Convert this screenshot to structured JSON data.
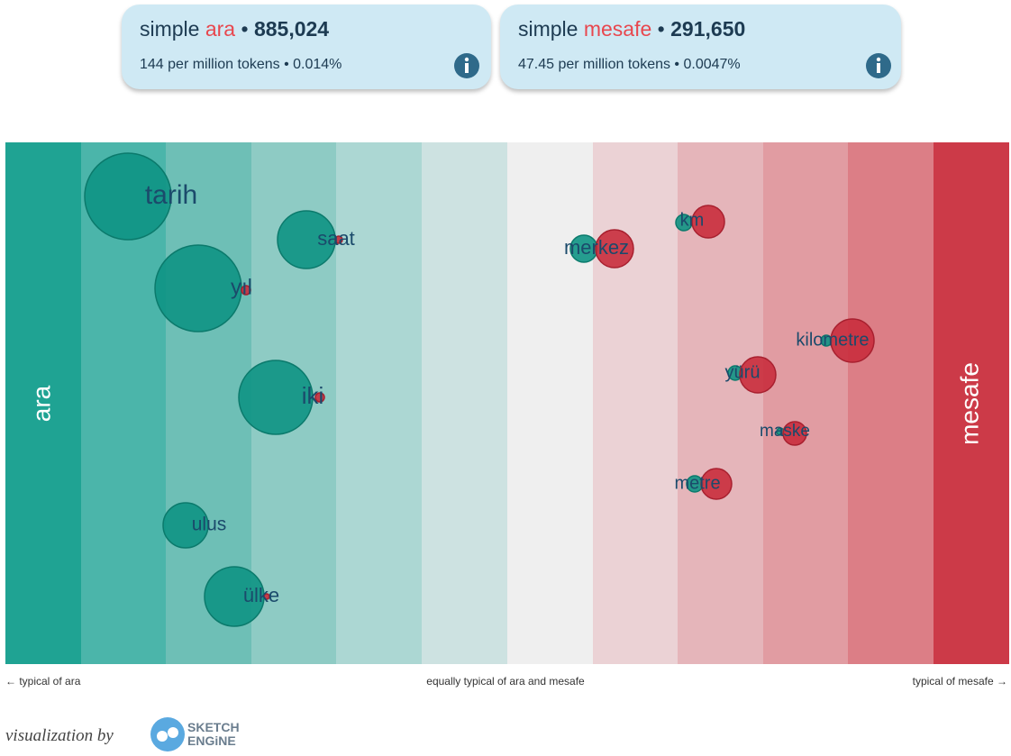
{
  "cards": [
    {
      "prefix": "simple",
      "lemma": "ara",
      "count": "885,024",
      "per_million": "144 per million tokens",
      "percent": "0.014%"
    },
    {
      "prefix": "simple",
      "lemma": "mesafe",
      "count": "291,650",
      "per_million": "47.45 per million tokens",
      "percent": "0.0047%"
    }
  ],
  "sides": {
    "left": "ara",
    "right": "mesafe"
  },
  "words": [
    "tarih",
    "saat",
    "yıl",
    "iki",
    "ulus",
    "ülke",
    "merkez",
    "km",
    "kilometre",
    "yürü",
    "maske",
    "metre"
  ],
  "footer": {
    "left": "← typical of ara",
    "center": "equally typical of ara and mesafe",
    "right": "typical of mesafe →"
  },
  "credit": {
    "text": "visualization by",
    "logo_top": "SKETCH",
    "logo_bottom": "ENGiNE"
  }
}
